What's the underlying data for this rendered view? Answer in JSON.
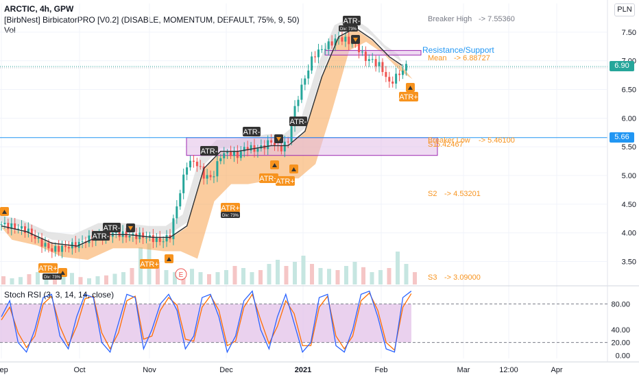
{
  "header": {
    "symbol_line": "ARCTIC, 4h, GPW",
    "indicator_line": "[BirbNest] BirbicatorPRO [V0.2] (DISABLE, MOMENTUM, DEFAULT, 75%, 9, 50)",
    "volume_line": "Vol"
  },
  "currency": "PLN",
  "price_badges": {
    "last": "6.90",
    "level": "5.66"
  },
  "colors": {
    "resistance_box": "#9c27b0",
    "level_line": "#2196f3",
    "mean_line": "#26a69a",
    "band_fill": "#f7a24f",
    "atr_plus": "#f7931e",
    "atr_minus": "#333333",
    "rsi_k": "#2962ff",
    "rsi_d": "#ff6d00",
    "rsi_band": "#e1bee7",
    "candle_up": "#26a69a",
    "candle_down": "#ef5350"
  },
  "chart_data": [
    {
      "type": "candlestick",
      "title": "ARCTIC, 4h, GPW",
      "x_ticks": [
        "Sep",
        "Oct",
        "Nov",
        "Dec",
        "2021",
        "Feb",
        "Mar",
        "12:00",
        "Apr"
      ],
      "y_ticks": [
        "3.50",
        "4.00",
        "4.50",
        "5.00",
        "5.50",
        "6.00",
        "6.50",
        "7.00",
        "7.50"
      ],
      "ylim": [
        3.1,
        8.0
      ],
      "last_price": 6.9,
      "horizontal_level": 5.66,
      "levels": [
        {
          "label": "Breaker High",
          "value": "-> 7.55360"
        },
        {
          "label": "Mean",
          "value": "-> 6.88727"
        },
        {
          "label": "Breaker Low",
          "value": "-> 5.46100"
        },
        {
          "label": "S1",
          "value": "-> 5.42467"
        },
        {
          "label": "S2",
          "value": "-> 4.53201"
        },
        {
          "label": "S3",
          "value": "-> 3.09000"
        }
      ],
      "annotations": [
        "Resistance/Support",
        "ATR+",
        "ATR-",
        "Div: 73%",
        "E"
      ],
      "close_path": [
        [
          0,
          4.15
        ],
        [
          3,
          4.1
        ],
        [
          6,
          4.05
        ],
        [
          9,
          3.85
        ],
        [
          12,
          3.7
        ],
        [
          15,
          3.75
        ],
        [
          18,
          3.8
        ],
        [
          21,
          3.9
        ],
        [
          24,
          3.95
        ],
        [
          27,
          4.0
        ],
        [
          30,
          3.95
        ],
        [
          33,
          3.95
        ],
        [
          36,
          3.9
        ],
        [
          38,
          3.85
        ],
        [
          40,
          3.95
        ],
        [
          42,
          4.6
        ],
        [
          44,
          5.2
        ],
        [
          46,
          5.25
        ],
        [
          48,
          5.0
        ],
        [
          50,
          4.95
        ],
        [
          52,
          5.35
        ],
        [
          54,
          5.4
        ],
        [
          56,
          5.35
        ],
        [
          58,
          5.5
        ],
        [
          60,
          5.45
        ],
        [
          62,
          5.5
        ],
        [
          64,
          5.6
        ],
        [
          66,
          5.45
        ],
        [
          68,
          5.6
        ],
        [
          70,
          6.3
        ],
        [
          72,
          6.7
        ],
        [
          74,
          7.1
        ],
        [
          76,
          7.2
        ],
        [
          78,
          7.3
        ],
        [
          80,
          7.4
        ],
        [
          82,
          7.35
        ],
        [
          84,
          7.3
        ],
        [
          86,
          7.05
        ],
        [
          88,
          7.0
        ],
        [
          90,
          6.9
        ],
        [
          92,
          6.6
        ],
        [
          94,
          6.75
        ],
        [
          96,
          6.9
        ]
      ],
      "mean_path": [
        [
          0,
          4.1
        ],
        [
          6,
          4.0
        ],
        [
          12,
          3.8
        ],
        [
          18,
          3.75
        ],
        [
          24,
          3.95
        ],
        [
          30,
          3.95
        ],
        [
          36,
          3.9
        ],
        [
          40,
          3.9
        ],
        [
          44,
          4.1
        ],
        [
          48,
          5.1
        ],
        [
          52,
          5.4
        ],
        [
          56,
          5.4
        ],
        [
          60,
          5.45
        ],
        [
          64,
          5.5
        ],
        [
          68,
          5.5
        ],
        [
          72,
          5.75
        ],
        [
          76,
          6.7
        ],
        [
          80,
          7.4
        ],
        [
          84,
          7.55
        ],
        [
          88,
          7.35
        ],
        [
          92,
          7.05
        ],
        [
          95,
          6.9
        ]
      ],
      "volume": [
        0.2,
        0.15,
        0.18,
        0.25,
        0.3,
        0.2,
        0.22,
        0.35,
        0.28,
        0.18,
        0.15,
        0.2,
        0.22,
        0.26,
        0.3,
        0.4,
        0.9,
        1.0,
        0.55,
        0.35,
        0.3,
        0.32,
        0.38,
        0.3,
        0.25,
        0.3,
        0.35,
        0.45,
        0.4,
        0.3,
        0.35,
        0.5,
        0.6,
        0.45,
        0.55,
        0.7,
        0.5,
        0.4,
        0.38,
        0.35,
        0.45,
        0.55,
        0.42,
        0.3,
        0.35,
        0.4,
        0.8,
        0.5,
        0.3
      ]
    },
    {
      "type": "line",
      "title": "Stoch RSI (3, 3, 14, 14, close)",
      "y_ticks": [
        "80.00",
        "40.00",
        "20.00",
        "0.00"
      ],
      "ylim": [
        -5,
        105
      ],
      "bands": [
        20,
        80
      ],
      "series": [
        {
          "name": "K",
          "values": [
            60,
            85,
            20,
            5,
            40,
            90,
            95,
            30,
            10,
            60,
            95,
            90,
            20,
            5,
            50,
            95,
            90,
            10,
            40,
            80,
            95,
            70,
            10,
            30,
            90,
            95,
            60,
            5,
            30,
            85,
            100,
            40,
            10,
            60,
            95,
            50,
            5,
            20,
            90,
            95,
            15,
            5,
            40,
            95,
            100,
            60,
            10,
            5,
            90,
            100
          ]
        },
        {
          "name": "D",
          "values": [
            55,
            75,
            35,
            12,
            30,
            80,
            92,
            45,
            15,
            45,
            88,
            92,
            35,
            10,
            35,
            85,
            92,
            25,
            30,
            70,
            90,
            78,
            25,
            22,
            75,
            93,
            70,
            15,
            22,
            75,
            95,
            55,
            18,
            45,
            85,
            65,
            15,
            15,
            75,
            92,
            30,
            10,
            30,
            85,
            97,
            70,
            20,
            8,
            75,
            96
          ]
        }
      ]
    }
  ],
  "labels": {
    "resistance_support": "Resistance/Support",
    "breaker_high": "Breaker High",
    "breaker_high_val": "-> 7.55360",
    "mean": "Mean",
    "mean_val": "-> 6.88727",
    "breaker_low": "Breaker Low",
    "breaker_low_val": "-> 5.46100",
    "s1": "S1",
    "s1_val": "5.42467",
    "s2": "S2",
    "s2_val": "-> 4.53201",
    "s3": "S3",
    "s3_val": "-> 3.09000",
    "stoch_title": "Stoch RSI (3, 3, 14, 14, close)",
    "atr_plus": "ATR+",
    "atr_minus": "ATR-",
    "div": "Div: 73%",
    "earnings": "E"
  }
}
